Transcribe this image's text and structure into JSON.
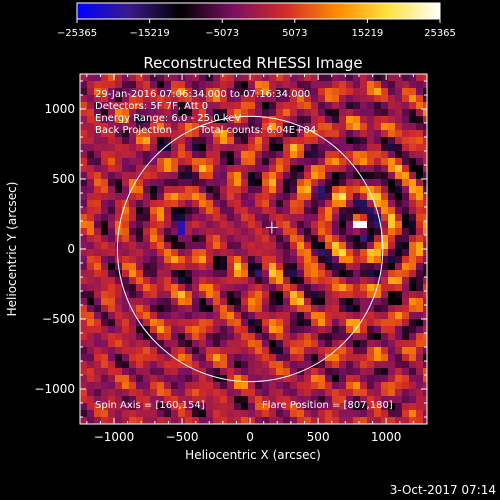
{
  "chart_data": {
    "type": "heatmap",
    "title": "Reconstructed RHESSI Image",
    "xlabel": "Heliocentric X (arcsec)",
    "ylabel": "Heliocentric Y (arcsec)",
    "xlim": [
      -1250,
      1300
    ],
    "ylim": [
      -1250,
      1250
    ],
    "x_ticks": [
      -1000,
      -500,
      0,
      500,
      1000
    ],
    "x_tick_labels": [
      "−1000",
      "−500",
      "0",
      "500",
      "1000"
    ],
    "y_ticks": [
      -1000,
      -500,
      0,
      500,
      1000
    ],
    "y_tick_labels": [
      "−1000",
      "−500",
      "0",
      "500",
      "1000"
    ],
    "colorbar": {
      "min": -25365,
      "max": 25365,
      "ticks": [
        -25365,
        -15219,
        -5073,
        5073,
        15219,
        25365
      ],
      "tick_labels": [
        "−25365",
        "−15219",
        "−5073",
        "5073",
        "15219",
        "25365"
      ],
      "colormap": [
        "#0000ff",
        "#3a1a8a",
        "#000000",
        "#7a1060",
        "#d02a2a",
        "#ff8a00",
        "#ffe040",
        "#ffffff"
      ]
    },
    "annotations": {
      "time_range": "29-Jan-2016 07:06:34.000 to 07:16:34.000",
      "detectors": "Detectors: 5F 7F, Att 0",
      "energy_range": "Energy Range: 6.0 - 25.0 keV",
      "method": "Back Projection",
      "total_counts": "Total counts: 6.04E+04",
      "spin_axis": "Spin Axis = [160,154]",
      "flare_position": "Flare Position = [807,180]"
    },
    "solar_limb": {
      "center": [
        0,
        0
      ],
      "radius_arcsec": 975
    },
    "crosshair": {
      "x": 160,
      "y": 154
    },
    "sources": [
      {
        "x": 807,
        "y": 180
      },
      {
        "x": -480,
        "y": 150
      }
    ],
    "grid": false
  },
  "footer": {
    "date_stamp": "3-Oct-2017 07:14"
  }
}
